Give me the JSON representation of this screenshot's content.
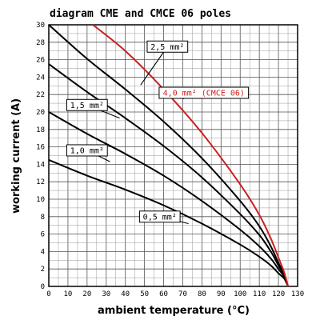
{
  "chart_data": {
    "type": "line",
    "title": "diagram CME and CMCE 06 poles",
    "xlabel": "ambient temperature (°C)",
    "ylabel": "working current (A)",
    "xlim": [
      0,
      130
    ],
    "ylim": [
      0,
      30
    ],
    "grid": true,
    "x_ticks": [
      "0",
      "10",
      "20",
      "30",
      "40",
      "50",
      "60",
      "70",
      "80",
      "90",
      "100",
      "110",
      "120",
      "130"
    ],
    "y_ticks": [
      "0",
      "2",
      "4",
      "6",
      "8",
      "10",
      "12",
      "14",
      "16",
      "18",
      "20",
      "22",
      "24",
      "26",
      "28",
      "30"
    ],
    "series": [
      {
        "name": "0,5 mm²",
        "color": "#000000",
        "x": [
          0,
          20,
          40,
          60,
          80,
          100,
          110,
          116,
          120,
          123,
          125
        ],
        "y": [
          14.5,
          12.7,
          11.1,
          9.3,
          7.2,
          4.8,
          3.4,
          2.4,
          1.5,
          0.9,
          0
        ]
      },
      {
        "name": "1,0 mm²",
        "color": "#000000",
        "x": [
          0,
          20,
          40,
          60,
          80,
          100,
          110,
          116,
          120,
          123,
          125
        ],
        "y": [
          20,
          17.5,
          15.2,
          12.7,
          9.8,
          6.5,
          4.6,
          3.2,
          2.0,
          1.1,
          0
        ]
      },
      {
        "name": "1,5 mm²",
        "color": "#000000",
        "x": [
          0,
          20,
          40,
          60,
          80,
          100,
          110,
          116,
          120,
          123,
          125
        ],
        "y": [
          25.5,
          22.3,
          19.3,
          16.1,
          12.5,
          8.3,
          5.9,
          4.0,
          2.4,
          1.3,
          0
        ]
      },
      {
        "name": "2,5 mm²",
        "color": "#000000",
        "x": [
          0,
          20,
          40,
          60,
          80,
          100,
          110,
          116,
          120,
          123,
          125
        ],
        "y": [
          30,
          26.1,
          22.6,
          18.9,
          14.7,
          9.8,
          6.9,
          4.6,
          2.7,
          1.4,
          0
        ]
      },
      {
        "name": "4,0 mm² (CMCE 06)",
        "color": "#cc1f1f",
        "x": [
          23,
          40,
          60,
          80,
          100,
          110,
          116,
          120,
          123,
          125
        ],
        "y": [
          30,
          27.0,
          22.6,
          17.6,
          11.7,
          8.2,
          5.5,
          3.3,
          1.6,
          0
        ]
      }
    ],
    "annotations": [
      {
        "text": "2,5 mm²",
        "series": "2,5 mm²",
        "at": [
          48,
          23.1
        ],
        "box": [
          62,
          27.5
        ]
      },
      {
        "text": "4,0 mm² (CMCE 06)",
        "series": "4,0 mm² (CMCE 06)",
        "at": [
          70,
          21.5
        ],
        "box": [
          81,
          22.2
        ]
      },
      {
        "text": "1,5 mm²",
        "series": "1,5 mm²",
        "at": [
          37,
          19.3
        ],
        "box": [
          20,
          20.8
        ]
      },
      {
        "text": "1,0 mm²",
        "series": "1,0 mm²",
        "at": [
          32,
          14.3
        ],
        "box": [
          20,
          15.6
        ]
      },
      {
        "text": "0,5 mm²",
        "series": "0,5 mm²",
        "at": [
          73,
          7.2
        ],
        "box": [
          58,
          8.0
        ]
      }
    ]
  }
}
